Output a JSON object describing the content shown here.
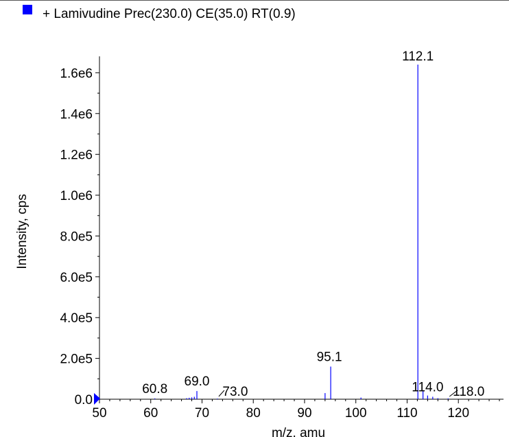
{
  "legend": {
    "label": "+ Lamivudine Prec(230.0) CE(35.0) RT(0.9)",
    "color": "#0000ff"
  },
  "chart_data": {
    "type": "bar",
    "xlabel": "m/z, amu",
    "ylabel": "Intensity, cps",
    "xlim": [
      50,
      128
    ],
    "ylim": [
      0,
      1640000
    ],
    "x_ticks": [
      "50",
      "60",
      "70",
      "80",
      "90",
      "100",
      "110",
      "120"
    ],
    "y_ticks": [
      "0.0",
      "2.0e5",
      "4.0e5",
      "6.0e5",
      "8.0e5",
      "1.0e6",
      "1.2e6",
      "1.4e6",
      "1.6e6"
    ],
    "series": [
      {
        "color": "#0000ff",
        "x": [
          60.8,
          67.0,
          67.5,
          68.0,
          68.5,
          69.0,
          73.0,
          94.0,
          95.1,
          101.0,
          112.1,
          113.1,
          114.0,
          115.0,
          116.0,
          118.0
        ],
        "values": [
          4000,
          5000,
          7000,
          9000,
          12000,
          40000,
          3000,
          30000,
          160000,
          8000,
          1640000,
          40000,
          18000,
          12000,
          5000,
          4000
        ]
      }
    ],
    "annotations": [
      {
        "x": 60.8,
        "label": "60.8"
      },
      {
        "x": 69.0,
        "label": "69.0"
      },
      {
        "x": 73.0,
        "label": "73.0"
      },
      {
        "x": 95.1,
        "label": "95.1"
      },
      {
        "x": 112.1,
        "label": "112.1"
      },
      {
        "x": 114.0,
        "label": "114.0"
      },
      {
        "x": 118.0,
        "label": "118.0"
      }
    ]
  }
}
